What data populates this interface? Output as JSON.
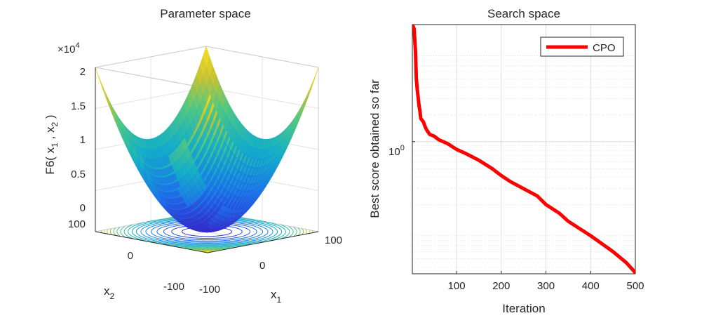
{
  "colors": {
    "line": "#ff0000",
    "grid": "#dcdcdc",
    "axis": "#262626",
    "surface_low": "#3a3fd8",
    "surface_mid": "#22b8b0",
    "surface_high": "#f9e125"
  },
  "chart_data": [
    {
      "type": "surface",
      "title": "Parameter space",
      "xlabel": "x",
      "xlabel_sub": "1",
      "ylabel": "x",
      "ylabel_sub": "2",
      "zlabel": "F6( x",
      "zlabel_sub1": "1",
      "zlabel_mid": " , x",
      "zlabel_sub2": "2",
      "zlabel_end": " )",
      "zscale_prefix": "×10",
      "zscale_exp": "4",
      "function": "sum of squares",
      "x_range": [
        -100,
        100
      ],
      "y_range": [
        -100,
        100
      ],
      "z_range": [
        0,
        20000
      ],
      "z_ticks": [
        "0",
        "0.5",
        "1",
        "1.5",
        "2"
      ],
      "x_ticks": [
        "-100",
        "0",
        "100"
      ],
      "y_ticks": [
        "-100",
        "0",
        "100"
      ],
      "contour_levels": [
        1000,
        2000,
        3000,
        4000,
        5000,
        6000,
        7000,
        8000,
        9000,
        10000,
        11000,
        12000,
        13000,
        14000,
        15000,
        16000,
        17000,
        18000,
        19000
      ]
    },
    {
      "type": "line",
      "title": "Search space",
      "xlabel": "Iteration",
      "ylabel": "Best score obtained so far",
      "yscale": "log",
      "xlim": [
        1,
        500
      ],
      "ylim": [
        0.034,
        20
      ],
      "x_ticks": [
        "100",
        "200",
        "300",
        "400",
        "500"
      ],
      "y_tick_base": "10",
      "y_tick_exp": "0",
      "legend": "CPO",
      "legend_location": "top-right",
      "grid": true,
      "series": [
        {
          "name": "CPO",
          "x": [
            1,
            5,
            8,
            10,
            12,
            16,
            18,
            20,
            26,
            30,
            33,
            40,
            50,
            60,
            70,
            80,
            100,
            120,
            150,
            180,
            200,
            220,
            250,
            280,
            300,
            330,
            350,
            400,
            450,
            480,
            500
          ],
          "y": [
            20,
            18,
            10,
            5.0,
            3.8,
            2.5,
            2.2,
            1.8,
            1.65,
            1.45,
            1.35,
            1.2,
            1.15,
            1.05,
            1.0,
            0.95,
            0.82,
            0.74,
            0.62,
            0.5,
            0.42,
            0.36,
            0.3,
            0.25,
            0.2,
            0.16,
            0.13,
            0.09,
            0.06,
            0.045,
            0.035
          ]
        }
      ]
    }
  ]
}
